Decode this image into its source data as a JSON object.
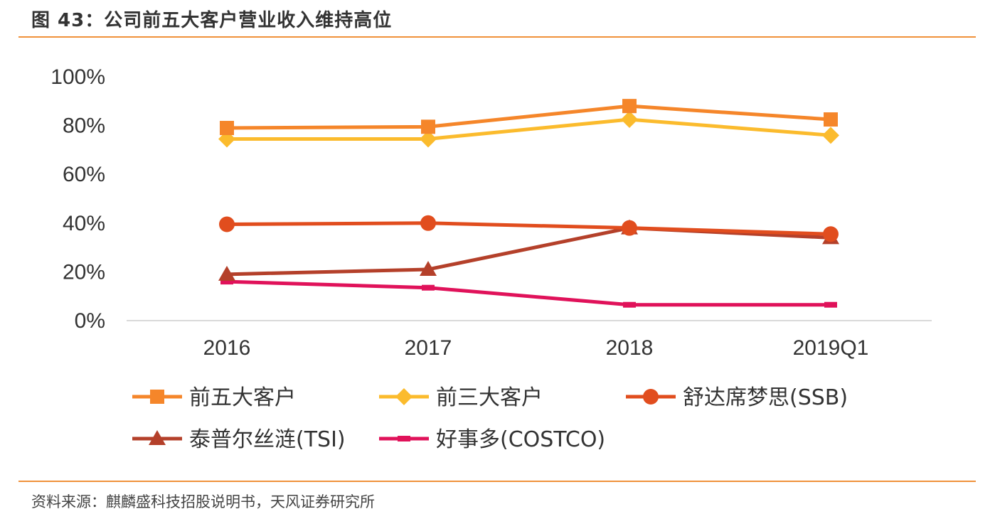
{
  "figure": {
    "title": "图 43：公司前五大客户营业收入维持高位",
    "source": "资料来源：麒麟盛科技招股说明书，天风证券研究所"
  },
  "chart_data": {
    "type": "line",
    "title": "图 43：公司前五大客户营业收入维持高位",
    "xlabel": "",
    "ylabel": "",
    "categories": [
      "2016",
      "2017",
      "2018",
      "2019Q1"
    ],
    "ylim": [
      0,
      100
    ],
    "yticks": [
      "0%",
      "20%",
      "40%",
      "60%",
      "80%",
      "100%"
    ],
    "ytick_values": [
      0,
      20,
      40,
      60,
      80,
      100
    ],
    "grid": false,
    "legend_position": "bottom",
    "series": [
      {
        "name": "前五大客户",
        "values": [
          79,
          79.5,
          88,
          82.5
        ],
        "color": "#f5862a",
        "marker": "square"
      },
      {
        "name": "前三大客户",
        "values": [
          74.5,
          74.5,
          82.5,
          76
        ],
        "color": "#fbbb2d",
        "marker": "diamond"
      },
      {
        "name": "舒达席梦思(SSB)",
        "values": [
          39.5,
          40,
          38,
          35.5
        ],
        "color": "#e14d1e",
        "marker": "circle"
      },
      {
        "name": "泰普尔丝涟(TSI)",
        "values": [
          19,
          21,
          38,
          34
        ],
        "color": "#b4402a",
        "marker": "triangle"
      },
      {
        "name": "好事多(COSTCO)",
        "values": [
          16,
          13.5,
          6.5,
          6.5
        ],
        "color": "#e0125a",
        "marker": "dash"
      }
    ]
  }
}
